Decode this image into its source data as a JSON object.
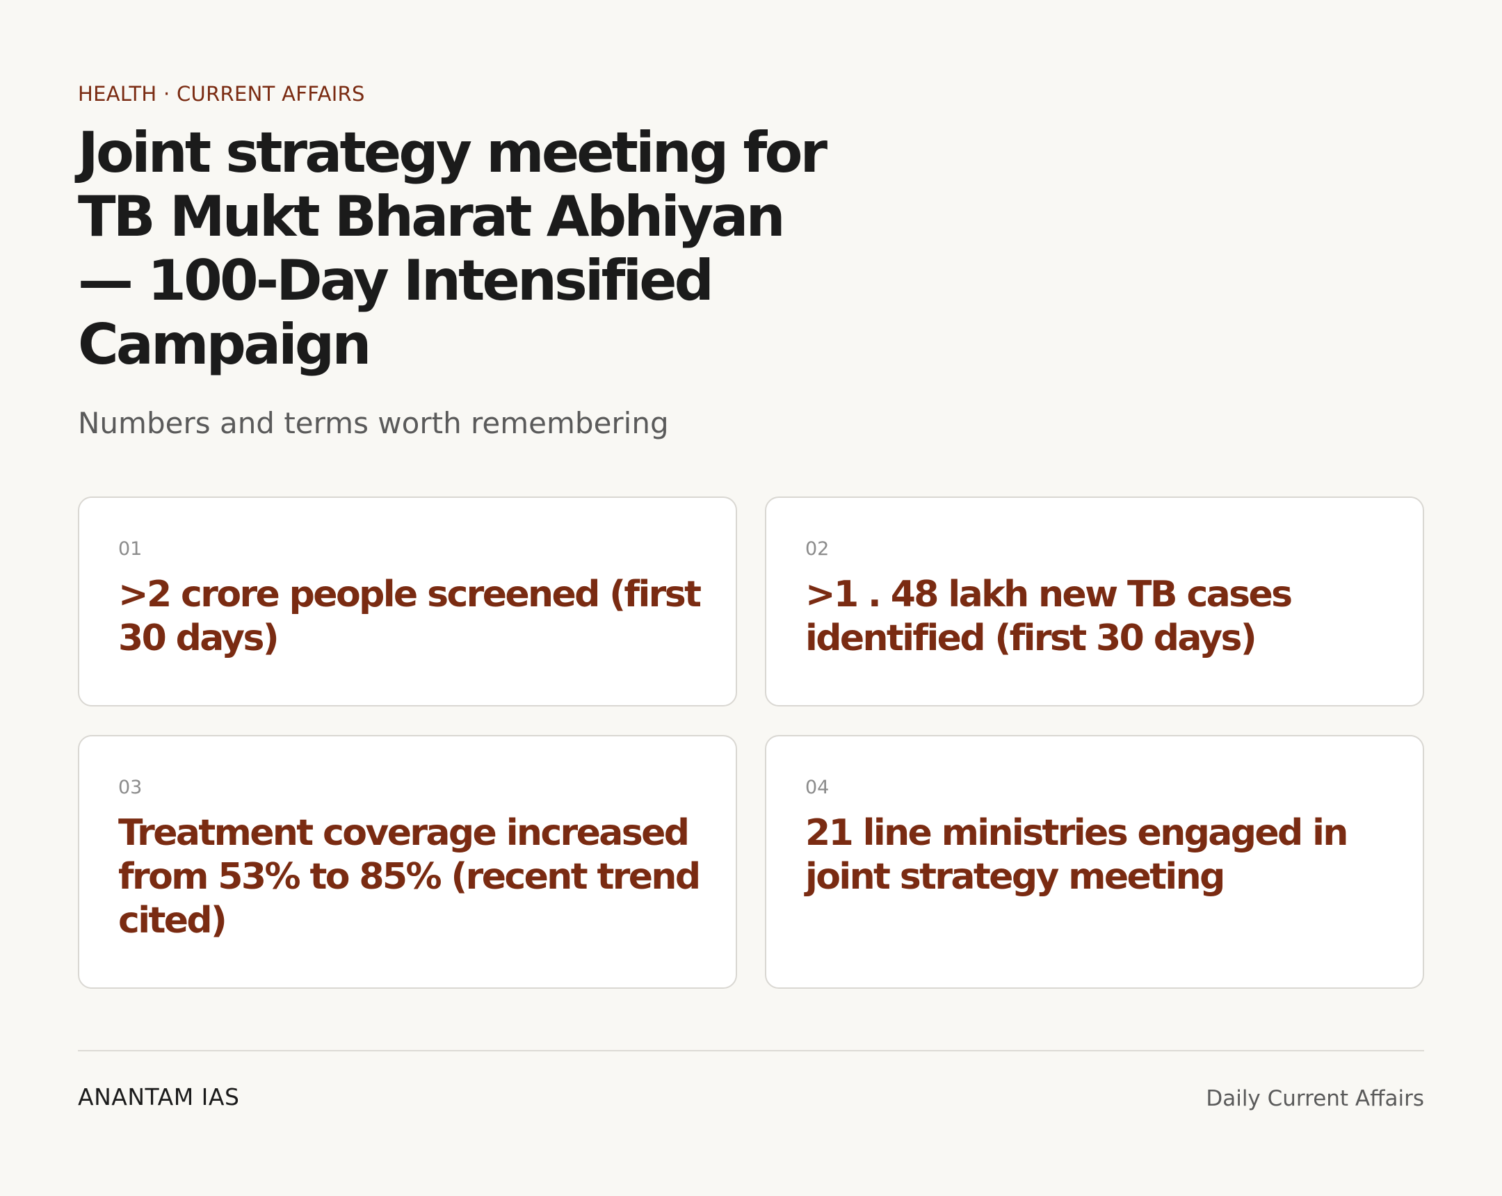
{
  "header": {
    "kicker": "HEALTH · CURRENT AFFAIRS",
    "title": "Joint strategy meeting for TB Mukt Bharat Abhiyan — 100-Day Intensified Campaign",
    "subtitle": "Numbers and terms worth remembering"
  },
  "cards": [
    {
      "number": "01",
      "text": ">2 crore people screened (first 30 days)"
    },
    {
      "number": "02",
      "text": ">1 . 48 lakh new TB cases identified (first 30 days)"
    },
    {
      "number": "03",
      "text": "Treatment coverage increased from 53% to 85% (recent trend cited)"
    },
    {
      "number": "04",
      "text": "21 line ministries engaged in joint strategy meeting"
    }
  ],
  "footer": {
    "brand": "ANANTAM IAS",
    "tagline": "Daily Current Affairs"
  },
  "colors": {
    "background": "#f9f8f4",
    "accent": "#7a2b12",
    "text": "#1b1b1b",
    "muted": "#5a5a5a",
    "card_border": "#d9d7d2"
  }
}
